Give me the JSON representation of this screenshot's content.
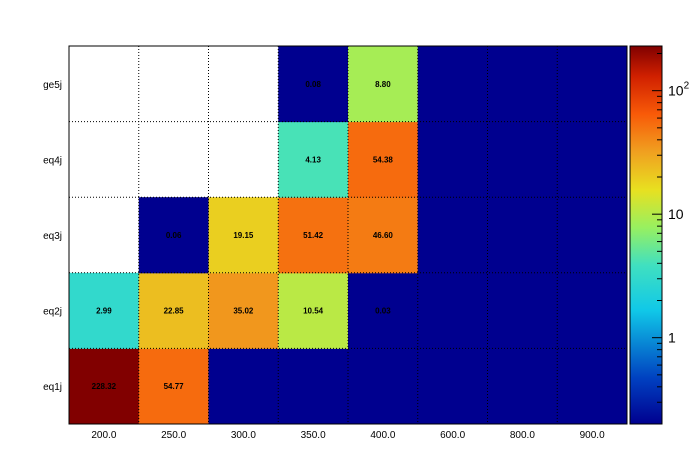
{
  "chart_data": {
    "type": "heatmap",
    "title": "",
    "xlabel": "",
    "ylabel": "",
    "x_categories": [
      "200.0",
      "250.0",
      "300.0",
      "350.0",
      "400.0",
      "600.0",
      "800.0",
      "900.0"
    ],
    "y_categories": [
      "eq1j",
      "eq2j",
      "eq3j",
      "eq4j",
      "ge5j"
    ],
    "z_scale": "log",
    "z_range": [
      0.2,
      230
    ],
    "colorbar": {
      "ticks": [
        {
          "value": 1,
          "label": "1"
        },
        {
          "value": 10,
          "label": "10"
        },
        {
          "value": 100,
          "label": "10",
          "exponent": "2"
        }
      ]
    },
    "cells": [
      {
        "x": "200.0",
        "y": "eq1j",
        "value": 228.32,
        "label": "228.32"
      },
      {
        "x": "250.0",
        "y": "eq1j",
        "value": 54.77,
        "label": "54.77"
      },
      {
        "x": "300.0",
        "y": "eq1j",
        "value": 0.1,
        "label": ""
      },
      {
        "x": "350.0",
        "y": "eq1j",
        "value": 0.1,
        "label": ""
      },
      {
        "x": "400.0",
        "y": "eq1j",
        "value": 0.1,
        "label": ""
      },
      {
        "x": "600.0",
        "y": "eq1j",
        "value": 0.1,
        "label": ""
      },
      {
        "x": "800.0",
        "y": "eq1j",
        "value": 0.1,
        "label": ""
      },
      {
        "x": "900.0",
        "y": "eq1j",
        "value": 0.1,
        "label": ""
      },
      {
        "x": "200.0",
        "y": "eq2j",
        "value": 2.99,
        "label": "2.99"
      },
      {
        "x": "250.0",
        "y": "eq2j",
        "value": 22.85,
        "label": "22.85"
      },
      {
        "x": "300.0",
        "y": "eq2j",
        "value": 35.02,
        "label": "35.02"
      },
      {
        "x": "350.0",
        "y": "eq2j",
        "value": 10.54,
        "label": "10.54"
      },
      {
        "x": "400.0",
        "y": "eq2j",
        "value": 0.03,
        "label": "0.03"
      },
      {
        "x": "600.0",
        "y": "eq2j",
        "value": 0.1,
        "label": ""
      },
      {
        "x": "800.0",
        "y": "eq2j",
        "value": 0.1,
        "label": ""
      },
      {
        "x": "900.0",
        "y": "eq2j",
        "value": 0.1,
        "label": ""
      },
      {
        "x": "250.0",
        "y": "eq3j",
        "value": 0.06,
        "label": "0.06"
      },
      {
        "x": "300.0",
        "y": "eq3j",
        "value": 19.15,
        "label": "19.15"
      },
      {
        "x": "350.0",
        "y": "eq3j",
        "value": 51.42,
        "label": "51.42"
      },
      {
        "x": "400.0",
        "y": "eq3j",
        "value": 46.6,
        "label": "46.60"
      },
      {
        "x": "600.0",
        "y": "eq3j",
        "value": 0.1,
        "label": ""
      },
      {
        "x": "800.0",
        "y": "eq3j",
        "value": 0.1,
        "label": ""
      },
      {
        "x": "900.0",
        "y": "eq3j",
        "value": 0.1,
        "label": ""
      },
      {
        "x": "350.0",
        "y": "eq4j",
        "value": 4.13,
        "label": "4.13"
      },
      {
        "x": "400.0",
        "y": "eq4j",
        "value": 54.38,
        "label": "54.38"
      },
      {
        "x": "600.0",
        "y": "eq4j",
        "value": 0.1,
        "label": ""
      },
      {
        "x": "800.0",
        "y": "eq4j",
        "value": 0.1,
        "label": ""
      },
      {
        "x": "900.0",
        "y": "eq4j",
        "value": 0.1,
        "label": ""
      },
      {
        "x": "350.0",
        "y": "ge5j",
        "value": 0.08,
        "label": "0.08"
      },
      {
        "x": "400.0",
        "y": "ge5j",
        "value": 8.8,
        "label": "8.80"
      },
      {
        "x": "600.0",
        "y": "ge5j",
        "value": 0.1,
        "label": ""
      },
      {
        "x": "800.0",
        "y": "ge5j",
        "value": 0.1,
        "label": ""
      },
      {
        "x": "900.0",
        "y": "ge5j",
        "value": 0.1,
        "label": ""
      }
    ]
  }
}
